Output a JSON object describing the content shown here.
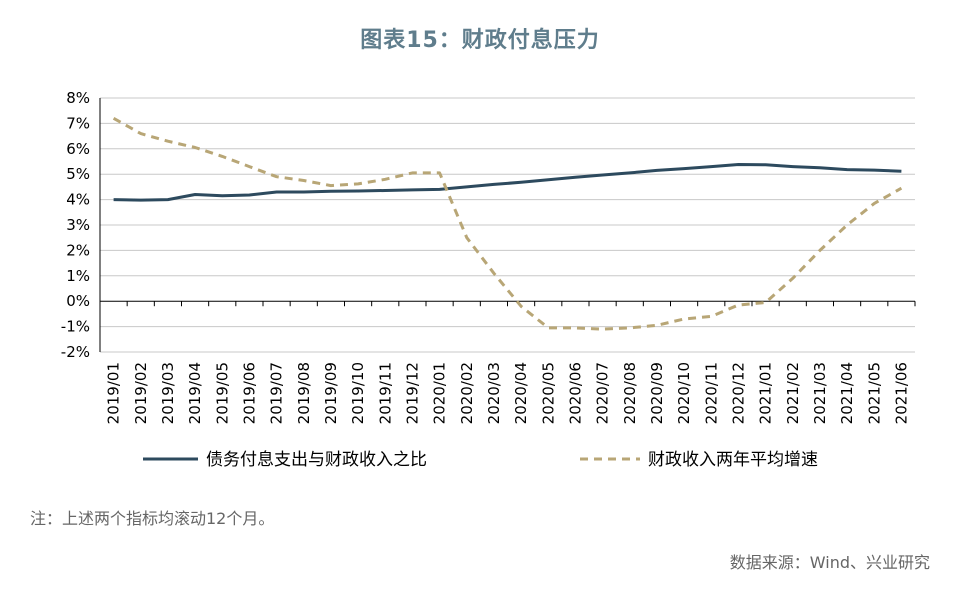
{
  "page": {
    "title": "图表15：财政付息压力",
    "note": "注：上述两个指标均滚动12个月。",
    "source": "数据来源：Wind、兴业研究"
  },
  "colors": {
    "series1": "#2d4a5e",
    "series2": "#b8a676",
    "grid": "#c8c8c8",
    "axis": "#000000"
  },
  "chart_data": {
    "type": "line",
    "title": "图表15：财政付息压力",
    "xlabel": "",
    "ylabel": "",
    "ylim": [
      -2,
      8
    ],
    "y_ticks": [
      -2,
      -1,
      0,
      1,
      2,
      3,
      4,
      5,
      6,
      7,
      8
    ],
    "y_tick_labels": [
      "-2%",
      "-1%",
      "0%",
      "1%",
      "2%",
      "3%",
      "4%",
      "5%",
      "6%",
      "7%",
      "8%"
    ],
    "grid": true,
    "legend_position": "bottom",
    "categories": [
      "2019/01",
      "2019/02",
      "2019/03",
      "2019/04",
      "2019/05",
      "2019/06",
      "2019/07",
      "2019/08",
      "2019/09",
      "2019/10",
      "2019/11",
      "2019/12",
      "2020/01",
      "2020/02",
      "2020/03",
      "2020/04",
      "2020/05",
      "2020/06",
      "2020/07",
      "2020/08",
      "2020/09",
      "2020/10",
      "2020/11",
      "2020/12",
      "2021/01",
      "2021/02",
      "2021/03",
      "2021/04",
      "2021/05",
      "2021/06"
    ],
    "series": [
      {
        "name": "债务付息支出与财政收入之比",
        "style": "solid",
        "color": "#2d4a5e",
        "values": [
          4.0,
          3.98,
          4.0,
          4.2,
          4.15,
          4.18,
          4.3,
          4.3,
          4.33,
          4.34,
          4.36,
          4.38,
          4.4,
          4.5,
          4.6,
          4.68,
          4.78,
          4.88,
          4.97,
          5.05,
          5.15,
          5.22,
          5.3,
          5.38,
          5.37,
          5.3,
          5.25,
          5.18,
          5.16,
          5.12
        ]
      },
      {
        "name": "财政收入两年平均增速",
        "style": "dashed",
        "color": "#b8a676",
        "values": [
          7.2,
          6.6,
          6.3,
          6.05,
          5.7,
          5.3,
          4.9,
          4.75,
          4.55,
          4.62,
          4.8,
          5.05,
          5.05,
          2.5,
          1.1,
          -0.2,
          -1.05,
          -1.05,
          -1.1,
          -1.05,
          -0.95,
          -0.7,
          -0.6,
          -0.15,
          -0.05,
          0.9,
          2.0,
          3.0,
          3.85,
          4.45
        ]
      }
    ]
  }
}
